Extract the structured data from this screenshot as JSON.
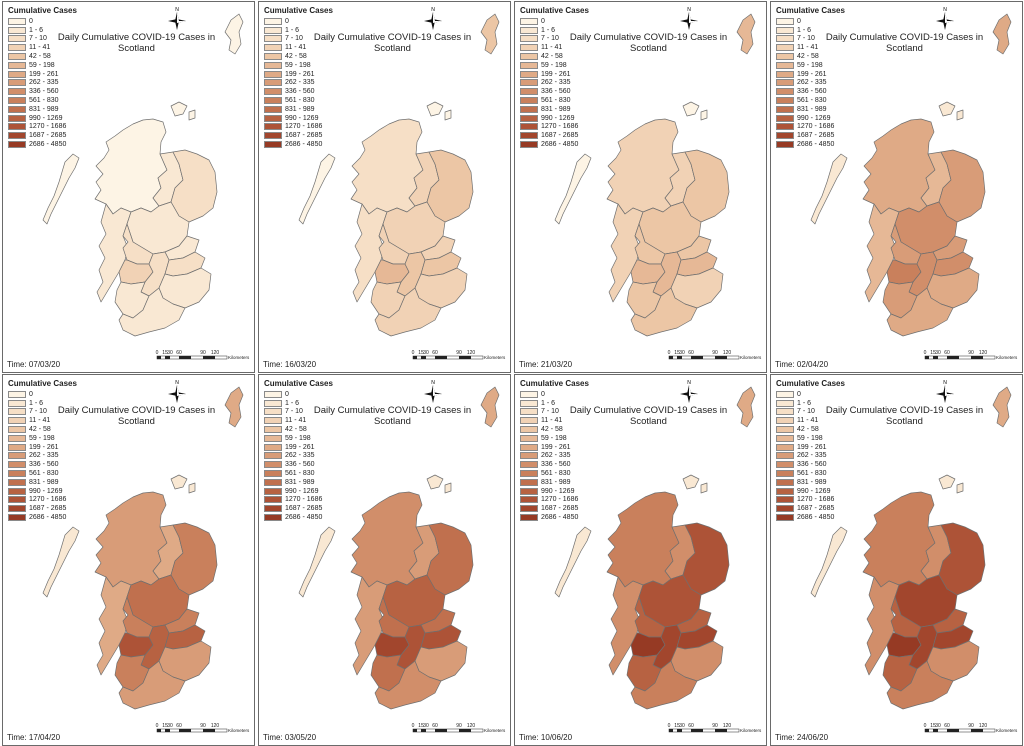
{
  "legend": {
    "title": "Cumulative Cases",
    "classes": [
      {
        "label": "0",
        "color": "#fdf4e5"
      },
      {
        "label": "1 - 6",
        "color": "#f9e8d3"
      },
      {
        "label": "7 - 10",
        "color": "#f6dfc6"
      },
      {
        "label": "11 - 41",
        "color": "#f1d2b5"
      },
      {
        "label": "42 - 58",
        "color": "#ecc6a5"
      },
      {
        "label": "59 - 198",
        "color": "#e6b896"
      },
      {
        "label": "199 - 261",
        "color": "#dfaa86"
      },
      {
        "label": "262 - 335",
        "color": "#d89c78"
      },
      {
        "label": "336 - 560",
        "color": "#d18e6a"
      },
      {
        "label": "561 - 830",
        "color": "#c9805c"
      },
      {
        "label": "831 - 989",
        "color": "#c0704e"
      },
      {
        "label": "990 - 1269",
        "color": "#b76242"
      },
      {
        "label": "1270 - 1686",
        "color": "#ad5337"
      },
      {
        "label": "1687 - 2685",
        "color": "#a2462d"
      },
      {
        "label": "2686 - 4850",
        "color": "#963a24"
      }
    ]
  },
  "map_title": "Daily Cumulative COVID-19 Cases in Scotland",
  "north_label": "N",
  "scale": {
    "ticks": [
      "0",
      "15",
      "30",
      "60",
      "90",
      "120"
    ],
    "unit": "Kilometers"
  },
  "panels": [
    {
      "time": "Time: 07/03/20",
      "levels": {
        "shet": 0,
        "ork": 0,
        "wisles": 0,
        "highland": 0,
        "moray": 1,
        "aberdeen": 2,
        "argyll": 1,
        "tayside": 1,
        "fife": 1,
        "forth": 2,
        "glasgow": 3,
        "lanark": 2,
        "lothian": 2,
        "ayrshire": 1,
        "dumfries": 1,
        "borders": 1
      }
    },
    {
      "time": "Time: 16/03/20",
      "levels": {
        "shet": 4,
        "ork": 0,
        "wisles": 0,
        "highland": 2,
        "moray": 3,
        "aberdeen": 4,
        "argyll": 2,
        "tayside": 3,
        "fife": 3,
        "forth": 3,
        "glasgow": 5,
        "lanark": 4,
        "lothian": 4,
        "ayrshire": 3,
        "dumfries": 3,
        "borders": 3
      }
    },
    {
      "time": "Time: 21/03/20",
      "levels": {
        "shet": 5,
        "ork": 0,
        "wisles": 0,
        "highland": 3,
        "moray": 3,
        "aberdeen": 4,
        "argyll": 3,
        "tayside": 4,
        "fife": 4,
        "forth": 4,
        "glasgow": 5,
        "lanark": 5,
        "lothian": 5,
        "ayrshire": 4,
        "dumfries": 4,
        "borders": 3
      }
    },
    {
      "time": "Time: 02/04/20",
      "levels": {
        "shet": 6,
        "ork": 1,
        "wisles": 1,
        "highland": 6,
        "moray": 5,
        "aberdeen": 7,
        "argyll": 5,
        "tayside": 8,
        "fife": 7,
        "forth": 7,
        "glasgow": 9,
        "lanark": 8,
        "lothian": 8,
        "ayrshire": 7,
        "dumfries": 6,
        "borders": 6
      }
    },
    {
      "time": "Time: 17/04/20",
      "levels": {
        "shet": 6,
        "ork": 1,
        "wisles": 1,
        "highland": 7,
        "moray": 6,
        "aberdeen": 9,
        "argyll": 6,
        "tayside": 10,
        "fife": 9,
        "forth": 9,
        "glasgow": 12,
        "lanark": 11,
        "lothian": 11,
        "ayrshire": 9,
        "dumfries": 7,
        "borders": 7
      }
    },
    {
      "time": "Time: 03/05/20",
      "levels": {
        "shet": 6,
        "ork": 1,
        "wisles": 1,
        "highland": 8,
        "moray": 7,
        "aberdeen": 10,
        "argyll": 7,
        "tayside": 11,
        "fife": 10,
        "forth": 10,
        "glasgow": 13,
        "lanark": 12,
        "lothian": 12,
        "ayrshire": 10,
        "dumfries": 8,
        "borders": 7
      }
    },
    {
      "time": "Time: 10/06/20",
      "levels": {
        "shet": 6,
        "ork": 1,
        "wisles": 1,
        "highland": 9,
        "moray": 8,
        "aberdeen": 12,
        "argyll": 8,
        "tayside": 12,
        "fife": 11,
        "forth": 11,
        "glasgow": 14,
        "lanark": 13,
        "lothian": 13,
        "ayrshire": 11,
        "dumfries": 9,
        "borders": 8
      }
    },
    {
      "time": "Time: 24/06/20",
      "levels": {
        "shet": 6,
        "ork": 1,
        "wisles": 1,
        "highland": 9,
        "moray": 8,
        "aberdeen": 12,
        "argyll": 8,
        "tayside": 13,
        "fife": 11,
        "forth": 11,
        "glasgow": 14,
        "lanark": 13,
        "lothian": 13,
        "ayrshire": 11,
        "dumfries": 9,
        "borders": 8
      }
    }
  ]
}
